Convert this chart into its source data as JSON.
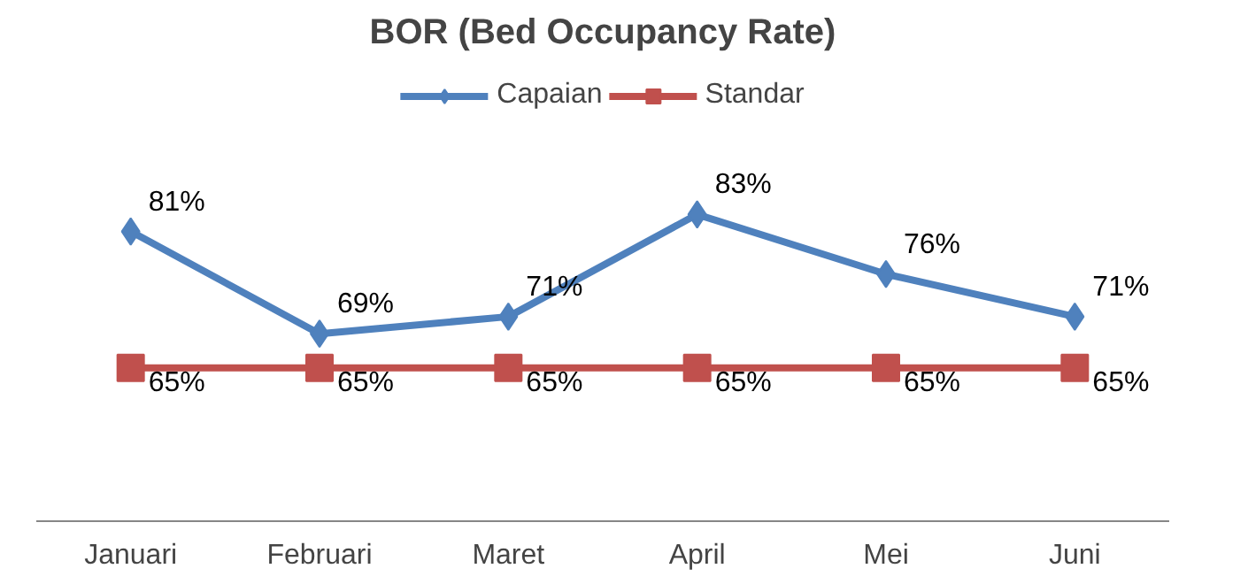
{
  "chart_data": {
    "type": "line",
    "title": "BOR (Bed Occupancy Rate)",
    "categories": [
      "Januari",
      "Februari",
      "Maret",
      "April",
      "Mei",
      "Juni"
    ],
    "series": [
      {
        "name": "Capaian",
        "color": "#4f81bd",
        "marker": "diamond",
        "values": [
          81,
          69,
          71,
          83,
          76,
          71
        ],
        "value_labels": [
          "81%",
          "69%",
          "71%",
          "83%",
          "76%",
          "71%"
        ]
      },
      {
        "name": "Standar",
        "color": "#c0504d",
        "marker": "square",
        "values": [
          65,
          65,
          65,
          65,
          65,
          65
        ],
        "value_labels": [
          "65%",
          "65%",
          "65%",
          "65%",
          "65%",
          "65%"
        ]
      }
    ],
    "data_labels": true,
    "tick_labels": "x",
    "grid": false,
    "legend": "top"
  }
}
